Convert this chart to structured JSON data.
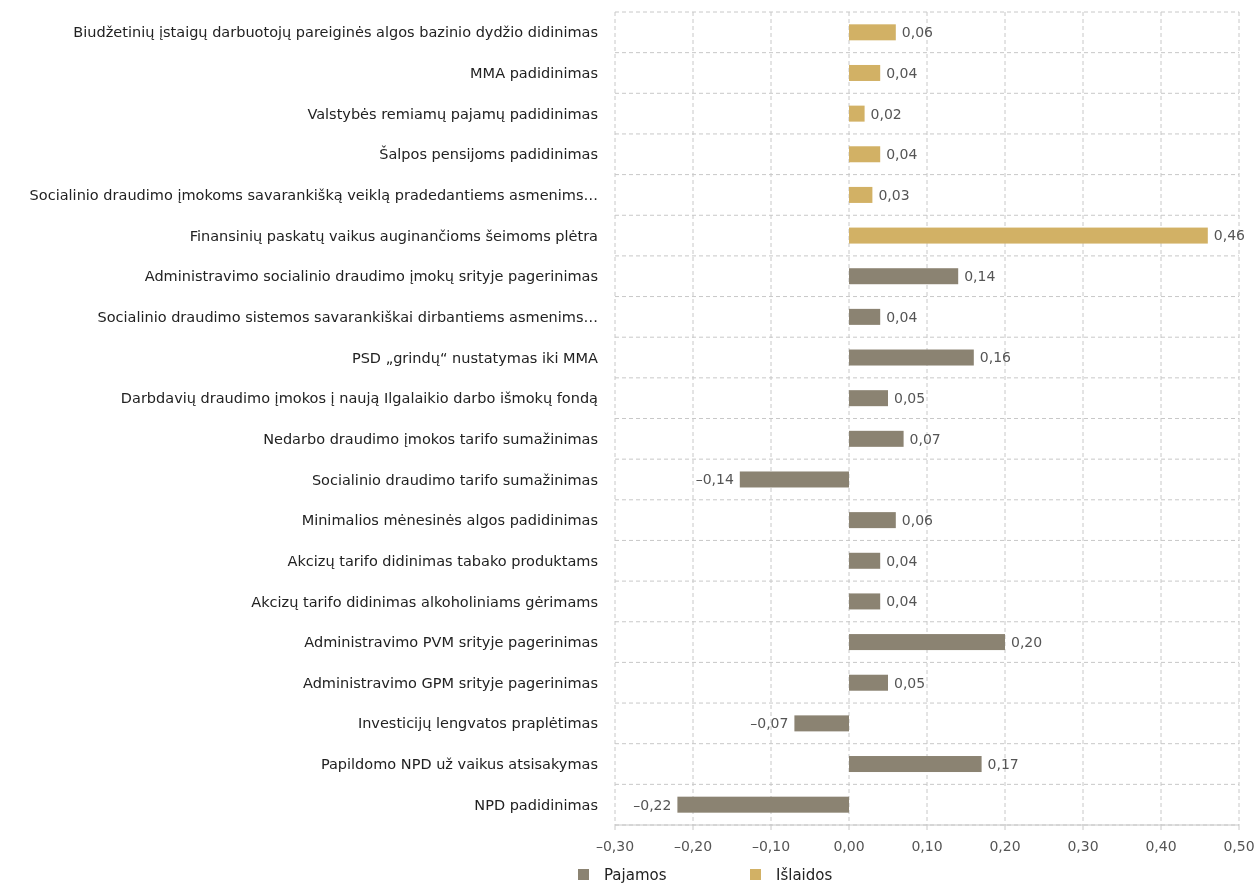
{
  "chart_data": {
    "type": "bar",
    "orientation": "horizontal",
    "categories": [
      "Biudžetinių įstaigų darbuotojų pareiginės algos bazinio dydžio didinimas",
      "MMA padidinimas",
      "Valstybės remiamų pajamų padidinimas",
      "Šalpos pensijoms padidinimas",
      "Socialinio draudimo įmokoms savarankišką veiklą pradedantiems asmenims…",
      "Finansinių paskatų vaikus auginančioms šeimoms plėtra",
      "Administravimo socialinio draudimo įmokų srityje pagerinimas",
      "Socialinio draudimo sistemos savarankiškai dirbantiems asmenims…",
      "PSD „grindų“ nustatymas iki MMA",
      "Darbdavių draudimo įmokos į naują Ilgalaikio darbo išmokų fondą",
      "Nedarbo draudimo įmokos tarifo sumažinimas",
      "Socialinio draudimo tarifo sumažinimas",
      "Minimalios mėnesinės algos padidinimas",
      "Akcizų tarifo didinimas tabako produktams",
      "Akcizų tarifo didinimas alkoholiniams gėrimams",
      "Administravimo PVM srityje pagerinimas",
      "Administravimo GPM srityje pagerinimas",
      "Investicijų lengvatos praplėtimas",
      "Papildomo NPD už vaikus atsisakymas",
      "NPD padidinimas"
    ],
    "series": [
      {
        "name": "Pajamos",
        "color": "#8b8372",
        "values": [
          null,
          null,
          null,
          null,
          null,
          null,
          0.14,
          0.04,
          0.16,
          0.05,
          0.07,
          -0.14,
          0.06,
          0.04,
          0.04,
          0.2,
          0.05,
          -0.07,
          0.17,
          -0.22
        ],
        "value_labels": [
          null,
          null,
          null,
          null,
          null,
          null,
          "0,14",
          "0,04",
          "0,16",
          "0,05",
          "0,07",
          "–0,14",
          "0,06",
          "0,04",
          "0,04",
          "0,20",
          "0,05",
          "–0,07",
          "0,17",
          "–0,22"
        ]
      },
      {
        "name": "Išlaidos",
        "color": "#d2b165",
        "values": [
          0.06,
          0.04,
          0.02,
          0.04,
          0.03,
          0.46,
          null,
          null,
          null,
          null,
          null,
          null,
          null,
          null,
          null,
          null,
          null,
          null,
          null,
          null
        ],
        "value_labels": [
          "0,06",
          "0,04",
          "0,02",
          "0,04",
          "0,03",
          "0,46",
          null,
          null,
          null,
          null,
          null,
          null,
          null,
          null,
          null,
          null,
          null,
          null,
          null,
          null
        ]
      }
    ],
    "xlim": [
      -0.3,
      0.5
    ],
    "xticks": [
      {
        "value": -0.3,
        "label": "–0,30"
      },
      {
        "value": -0.2,
        "label": "–0,20"
      },
      {
        "value": -0.1,
        "label": "–0,10"
      },
      {
        "value": 0,
        "label": "0,00"
      },
      {
        "value": 0.1,
        "label": "0,10"
      },
      {
        "value": 0.2,
        "label": "0,20"
      },
      {
        "value": 0.3,
        "label": "0,30"
      },
      {
        "value": 0.4,
        "label": "0,40"
      },
      {
        "value": 0.5,
        "label": "0,50"
      }
    ],
    "grid": true,
    "legend": "bottom"
  }
}
